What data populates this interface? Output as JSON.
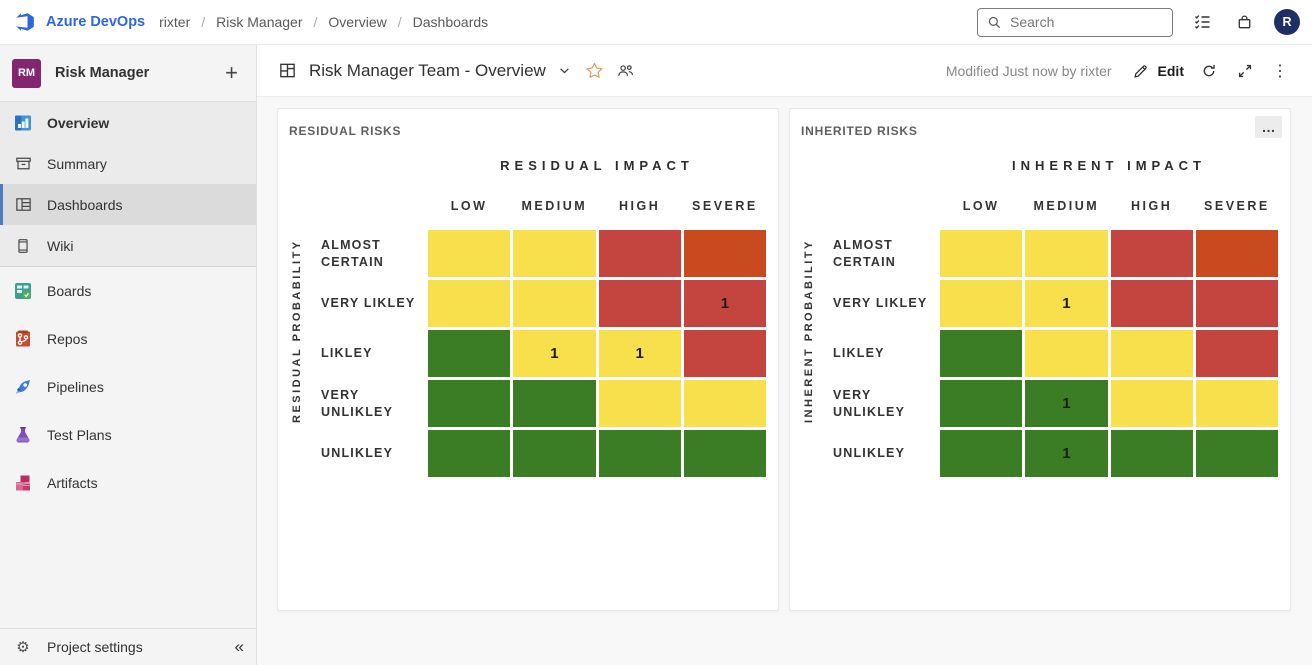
{
  "topbar": {
    "brand": "Azure DevOps",
    "breadcrumb": [
      "rixter",
      "Risk Manager",
      "Overview",
      "Dashboards"
    ],
    "separator": "/",
    "search": {
      "placeholder": "Search"
    },
    "avatar_initial": "R"
  },
  "sidebar": {
    "project": {
      "initials": "RM",
      "name": "Risk Manager"
    },
    "items": [
      {
        "label": "Overview"
      },
      {
        "label": "Summary"
      },
      {
        "label": "Dashboards",
        "active": true
      },
      {
        "label": "Wiki"
      },
      {
        "label": "Boards"
      },
      {
        "label": "Repos"
      },
      {
        "label": "Pipelines"
      },
      {
        "label": "Test Plans"
      },
      {
        "label": "Artifacts"
      }
    ],
    "footer": {
      "label": "Project settings"
    }
  },
  "header": {
    "title": "Risk Manager Team - Overview",
    "modified": "Modified Just now by rixter",
    "edit_label": "Edit"
  },
  "icons": {
    "plus": "+",
    "collapse": "«",
    "gear": "⚙",
    "ellipsis_h": "…",
    "ellipsis_v": "⋮"
  },
  "colors": {
    "brand_blue": "#2f66de",
    "selected_bar": "#4E7CBE",
    "avatar_bg": "#1F2F66",
    "star": "#DD9C63",
    "yellow": "#F7E04C",
    "green": "#3B7D24",
    "red": "#C4453F",
    "orange": "#C94A1E"
  },
  "chart_data": [
    {
      "type": "heatmap",
      "widget_title": "RESIDUAL RISKS",
      "xlabel": "RESIDUAL IMPACT",
      "ylabel": "RESIDUAL PROBABILITY",
      "columns": [
        "LOW",
        "MEDIUM",
        "HIGH",
        "SEVERE"
      ],
      "rows": [
        "ALMOST CERTAIN",
        "VERY LIKLEY",
        "LIKLEY",
        "VERY UNLIKLEY",
        "UNLIKLEY"
      ],
      "cell_colors": [
        [
          "yellow",
          "yellow",
          "red",
          "orange"
        ],
        [
          "yellow",
          "yellow",
          "red",
          "red"
        ],
        [
          "green",
          "yellow",
          "yellow",
          "red"
        ],
        [
          "green",
          "green",
          "yellow",
          "yellow"
        ],
        [
          "green",
          "green",
          "green",
          "green"
        ]
      ],
      "values": [
        [
          null,
          null,
          null,
          null
        ],
        [
          null,
          null,
          null,
          1
        ],
        [
          null,
          1,
          1,
          null
        ],
        [
          null,
          null,
          null,
          null
        ],
        [
          null,
          null,
          null,
          null
        ]
      ]
    },
    {
      "type": "heatmap",
      "widget_title": "INHERITED RISKS",
      "xlabel": "INHERENT IMPACT",
      "ylabel": "INHERENT PROBABILITY",
      "columns": [
        "LOW",
        "MEDIUM",
        "HIGH",
        "SEVERE"
      ],
      "rows": [
        "ALMOST CERTAIN",
        "VERY LIKLEY",
        "LIKLEY",
        "VERY UNLIKLEY",
        "UNLIKLEY"
      ],
      "cell_colors": [
        [
          "yellow",
          "yellow",
          "red",
          "orange"
        ],
        [
          "yellow",
          "yellow",
          "red",
          "red"
        ],
        [
          "green",
          "yellow",
          "yellow",
          "red"
        ],
        [
          "green",
          "green",
          "yellow",
          "yellow"
        ],
        [
          "green",
          "green",
          "green",
          "green"
        ]
      ],
      "values": [
        [
          null,
          null,
          null,
          null
        ],
        [
          null,
          1,
          null,
          null
        ],
        [
          null,
          null,
          null,
          null
        ],
        [
          null,
          1,
          null,
          null
        ],
        [
          null,
          1,
          null,
          null
        ]
      ]
    }
  ]
}
